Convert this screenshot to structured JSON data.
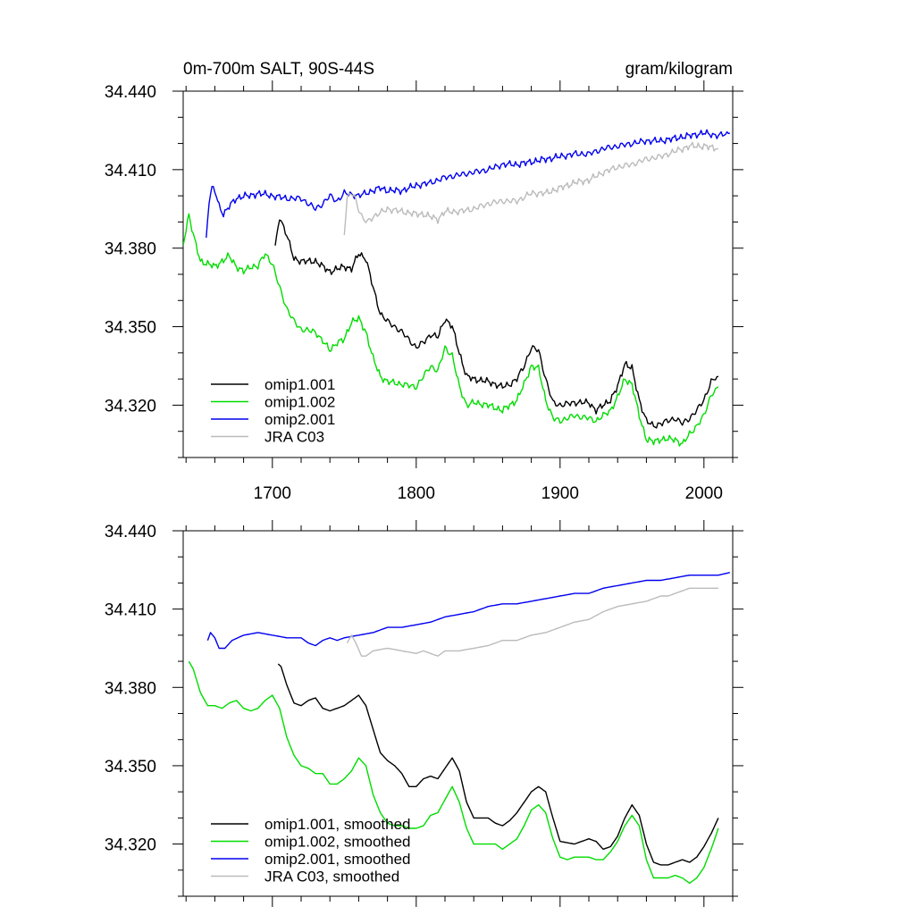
{
  "figure": {
    "title_left": "0m-700m SALT, 90S-44S",
    "title_right": "gram/kilogram"
  },
  "chart_data": [
    {
      "type": "line",
      "panel": "top",
      "title": "0m-700m SALT, 90S-44S",
      "units": "gram/kilogram",
      "xlim": [
        1638,
        2020
      ],
      "ylim": [
        34.3,
        34.44
      ],
      "yticks": [
        34.44,
        34.41,
        34.38,
        34.35,
        34.32
      ],
      "ytick_labels": [
        "34.440",
        "34.410",
        "34.380",
        "34.350",
        "34.320"
      ],
      "xticks": [
        1700,
        1800,
        1900,
        2000
      ],
      "xtick_labels": [
        "1700",
        "1800",
        "1900",
        "2000"
      ],
      "show_xtick_labels": true,
      "grid": false,
      "legend_position": "bottom-left",
      "noise": 0.0016,
      "series": [
        {
          "name": "omip1.001",
          "color": "#000000",
          "x": [
            1702,
            1705,
            1710,
            1715,
            1720,
            1730,
            1740,
            1750,
            1755,
            1760,
            1765,
            1770,
            1775,
            1780,
            1790,
            1800,
            1805,
            1810,
            1815,
            1820,
            1825,
            1830,
            1835,
            1840,
            1850,
            1860,
            1865,
            1870,
            1875,
            1880,
            1885,
            1890,
            1895,
            1900,
            1910,
            1920,
            1925,
            1930,
            1935,
            1940,
            1945,
            1950,
            1955,
            1960,
            1965,
            1970,
            1980,
            1985,
            1990,
            1995,
            2000,
            2005,
            2010
          ],
          "y": [
            34.381,
            34.392,
            34.385,
            34.376,
            34.375,
            34.375,
            34.371,
            34.373,
            34.372,
            34.378,
            34.376,
            34.365,
            34.355,
            34.352,
            34.348,
            34.342,
            34.344,
            34.347,
            34.346,
            34.353,
            34.35,
            34.34,
            34.331,
            34.33,
            34.329,
            34.327,
            34.328,
            34.33,
            34.335,
            34.342,
            34.341,
            34.33,
            34.321,
            34.32,
            34.321,
            34.321,
            34.318,
            34.32,
            34.322,
            34.327,
            34.336,
            34.334,
            34.322,
            34.314,
            34.312,
            34.313,
            34.315,
            34.313,
            34.315,
            34.318,
            34.322,
            34.329,
            34.331
          ]
        },
        {
          "name": "omip1.002",
          "color": "#00dd00",
          "x": [
            1638,
            1642,
            1645,
            1650,
            1655,
            1660,
            1670,
            1675,
            1680,
            1685,
            1690,
            1695,
            1700,
            1705,
            1710,
            1715,
            1720,
            1730,
            1740,
            1745,
            1750,
            1755,
            1760,
            1765,
            1770,
            1775,
            1780,
            1790,
            1800,
            1810,
            1815,
            1820,
            1825,
            1830,
            1835,
            1840,
            1850,
            1860,
            1865,
            1870,
            1875,
            1880,
            1885,
            1890,
            1895,
            1900,
            1910,
            1920,
            1925,
            1930,
            1935,
            1940,
            1945,
            1950,
            1955,
            1960,
            1965,
            1970,
            1980,
            1985,
            1990,
            1995,
            2000,
            2005,
            2010
          ],
          "y": [
            34.381,
            34.393,
            34.385,
            34.375,
            34.374,
            34.373,
            34.377,
            34.373,
            34.371,
            34.373,
            34.373,
            34.378,
            34.374,
            34.365,
            34.357,
            34.352,
            34.349,
            34.348,
            34.341,
            34.344,
            34.345,
            34.352,
            34.353,
            34.348,
            34.338,
            34.331,
            34.329,
            34.328,
            34.327,
            34.335,
            34.333,
            34.342,
            34.339,
            34.327,
            34.32,
            34.321,
            34.32,
            34.318,
            34.32,
            34.322,
            34.328,
            34.335,
            34.334,
            34.322,
            34.315,
            34.314,
            34.316,
            34.315,
            34.314,
            34.316,
            34.318,
            34.323,
            34.33,
            34.328,
            34.316,
            34.307,
            34.306,
            34.307,
            34.307,
            34.305,
            34.309,
            34.312,
            34.316,
            34.324,
            34.327
          ]
        },
        {
          "name": "omip2.001",
          "color": "#0000ee",
          "x": [
            1654,
            1656,
            1658,
            1660,
            1663,
            1666,
            1670,
            1675,
            1680,
            1685,
            1690,
            1700,
            1710,
            1720,
            1725,
            1730,
            1735,
            1740,
            1745,
            1750,
            1760,
            1770,
            1775,
            1780,
            1790,
            1800,
            1810,
            1820,
            1830,
            1840,
            1850,
            1860,
            1870,
            1880,
            1890,
            1900,
            1910,
            1920,
            1930,
            1940,
            1950,
            1960,
            1970,
            1980,
            1990,
            2000,
            2010,
            2018
          ],
          "y": [
            34.384,
            34.398,
            34.403,
            34.402,
            34.396,
            34.393,
            34.396,
            34.399,
            34.4,
            34.4,
            34.401,
            34.4,
            34.399,
            34.399,
            34.397,
            34.395,
            34.397,
            34.4,
            34.398,
            34.401,
            34.4,
            34.402,
            34.403,
            34.402,
            34.402,
            34.404,
            34.405,
            34.407,
            34.408,
            34.409,
            34.41,
            34.412,
            34.412,
            34.413,
            34.414,
            34.415,
            34.416,
            34.416,
            34.418,
            34.419,
            34.42,
            34.421,
            34.421,
            34.422,
            34.423,
            34.424,
            34.423,
            34.424
          ]
        },
        {
          "name": "JRA C03",
          "color": "#bbbbbb",
          "x": [
            1750,
            1752,
            1755,
            1757,
            1760,
            1763,
            1766,
            1770,
            1780,
            1790,
            1800,
            1805,
            1810,
            1815,
            1820,
            1830,
            1840,
            1850,
            1860,
            1870,
            1880,
            1890,
            1900,
            1910,
            1920,
            1930,
            1940,
            1950,
            1960,
            1970,
            1975,
            1980,
            1990,
            2000,
            2010
          ],
          "y": [
            34.385,
            34.399,
            34.401,
            34.4,
            34.395,
            34.391,
            34.39,
            34.392,
            34.395,
            34.394,
            34.393,
            34.393,
            34.392,
            34.391,
            34.394,
            34.394,
            34.395,
            34.397,
            34.398,
            34.398,
            34.401,
            34.401,
            34.403,
            34.405,
            34.406,
            34.409,
            34.411,
            34.412,
            34.414,
            34.415,
            34.416,
            34.417,
            34.419,
            34.419,
            34.418
          ]
        }
      ]
    },
    {
      "type": "line",
      "panel": "bottom",
      "xlim": [
        1638,
        2020
      ],
      "ylim": [
        34.3,
        34.44
      ],
      "yticks": [
        34.44,
        34.41,
        34.38,
        34.35,
        34.32
      ],
      "ytick_labels": [
        "34.440",
        "34.410",
        "34.380",
        "34.350",
        "34.320"
      ],
      "xticks": [
        1700,
        1800,
        1900,
        2000
      ],
      "xtick_labels": [],
      "show_xtick_labels": false,
      "grid": false,
      "legend_position": "bottom-left",
      "noise": 0,
      "series": [
        {
          "name": "omip1.001, smoothed",
          "color": "#000000",
          "x": [
            1704,
            1706,
            1710,
            1715,
            1720,
            1725,
            1730,
            1735,
            1740,
            1745,
            1750,
            1755,
            1760,
            1765,
            1770,
            1775,
            1780,
            1785,
            1790,
            1795,
            1800,
            1805,
            1810,
            1815,
            1820,
            1825,
            1830,
            1835,
            1840,
            1850,
            1855,
            1860,
            1865,
            1870,
            1875,
            1880,
            1885,
            1890,
            1895,
            1900,
            1910,
            1915,
            1920,
            1925,
            1930,
            1935,
            1940,
            1945,
            1950,
            1955,
            1960,
            1965,
            1970,
            1975,
            1980,
            1985,
            1990,
            1995,
            2000,
            2005,
            2010
          ],
          "y": [
            34.389,
            34.388,
            34.381,
            34.374,
            34.373,
            34.375,
            34.376,
            34.372,
            34.371,
            34.372,
            34.373,
            34.375,
            34.377,
            34.373,
            34.364,
            34.355,
            34.352,
            34.35,
            34.347,
            34.342,
            34.342,
            34.345,
            34.346,
            34.345,
            34.349,
            34.353,
            34.348,
            34.336,
            34.33,
            34.33,
            34.328,
            34.327,
            34.329,
            34.332,
            34.336,
            34.34,
            34.342,
            34.34,
            34.33,
            34.321,
            34.32,
            34.321,
            34.322,
            34.321,
            34.318,
            34.319,
            34.323,
            34.33,
            34.335,
            34.331,
            34.32,
            34.313,
            34.312,
            34.312,
            34.313,
            34.314,
            34.313,
            34.315,
            34.319,
            34.324,
            34.33
          ]
        },
        {
          "name": "omip1.002, smoothed",
          "color": "#00dd00",
          "x": [
            1642,
            1645,
            1650,
            1655,
            1660,
            1665,
            1670,
            1675,
            1680,
            1685,
            1690,
            1695,
            1700,
            1705,
            1710,
            1715,
            1720,
            1725,
            1730,
            1735,
            1740,
            1745,
            1750,
            1755,
            1760,
            1765,
            1770,
            1775,
            1780,
            1785,
            1790,
            1795,
            1800,
            1805,
            1810,
            1815,
            1820,
            1825,
            1830,
            1835,
            1840,
            1850,
            1855,
            1860,
            1865,
            1870,
            1875,
            1880,
            1885,
            1890,
            1895,
            1900,
            1905,
            1910,
            1915,
            1920,
            1925,
            1930,
            1935,
            1940,
            1945,
            1950,
            1955,
            1960,
            1965,
            1970,
            1975,
            1980,
            1985,
            1990,
            1995,
            2000,
            2005,
            2010
          ],
          "y": [
            34.39,
            34.387,
            34.378,
            34.373,
            34.373,
            34.372,
            34.374,
            34.375,
            34.372,
            34.371,
            34.372,
            34.375,
            34.377,
            34.372,
            34.361,
            34.354,
            34.35,
            34.349,
            34.347,
            34.347,
            34.343,
            34.343,
            34.345,
            34.348,
            34.353,
            34.35,
            34.339,
            34.332,
            34.328,
            34.327,
            34.327,
            34.326,
            34.326,
            34.327,
            34.331,
            34.332,
            34.337,
            34.342,
            34.336,
            34.326,
            34.32,
            34.32,
            34.32,
            34.318,
            34.32,
            34.322,
            34.327,
            34.333,
            34.335,
            34.332,
            34.322,
            34.315,
            34.314,
            34.315,
            34.315,
            34.315,
            34.314,
            34.314,
            34.317,
            34.321,
            34.327,
            34.331,
            34.327,
            34.314,
            34.307,
            34.307,
            34.307,
            34.308,
            34.307,
            34.305,
            34.307,
            34.311,
            34.318,
            34.326
          ]
        },
        {
          "name": "omip2.001, smoothed",
          "color": "#0000ee",
          "x": [
            1655,
            1657,
            1660,
            1663,
            1667,
            1672,
            1680,
            1690,
            1700,
            1710,
            1720,
            1725,
            1730,
            1735,
            1740,
            1745,
            1750,
            1760,
            1770,
            1780,
            1790,
            1800,
            1810,
            1820,
            1830,
            1840,
            1850,
            1860,
            1870,
            1880,
            1890,
            1900,
            1910,
            1920,
            1930,
            1940,
            1950,
            1960,
            1970,
            1980,
            1990,
            2000,
            2010,
            2018
          ],
          "y": [
            34.398,
            34.401,
            34.399,
            34.395,
            34.395,
            34.398,
            34.4,
            34.401,
            34.4,
            34.399,
            34.399,
            34.397,
            34.396,
            34.398,
            34.399,
            34.398,
            34.399,
            34.4,
            34.401,
            34.403,
            34.403,
            34.404,
            34.405,
            34.407,
            34.408,
            34.409,
            34.411,
            34.412,
            34.412,
            34.413,
            34.414,
            34.415,
            34.416,
            34.416,
            34.418,
            34.419,
            34.42,
            34.421,
            34.421,
            34.422,
            34.423,
            34.423,
            34.423,
            34.424
          ]
        },
        {
          "name": "JRA C03, smoothed",
          "color": "#bbbbbb",
          "x": [
            1752,
            1755,
            1758,
            1762,
            1765,
            1770,
            1780,
            1790,
            1800,
            1805,
            1810,
            1815,
            1820,
            1830,
            1840,
            1850,
            1860,
            1870,
            1880,
            1890,
            1900,
            1910,
            1920,
            1930,
            1940,
            1950,
            1960,
            1970,
            1975,
            1980,
            1990,
            2000,
            2010
          ],
          "y": [
            34.397,
            34.4,
            34.397,
            34.392,
            34.392,
            34.394,
            34.395,
            34.394,
            34.393,
            34.394,
            34.393,
            34.392,
            34.394,
            34.394,
            34.395,
            34.396,
            34.398,
            34.398,
            34.4,
            34.401,
            34.403,
            34.405,
            34.406,
            34.409,
            34.411,
            34.412,
            34.413,
            34.415,
            34.415,
            34.416,
            34.418,
            34.418,
            34.418
          ]
        }
      ]
    }
  ]
}
